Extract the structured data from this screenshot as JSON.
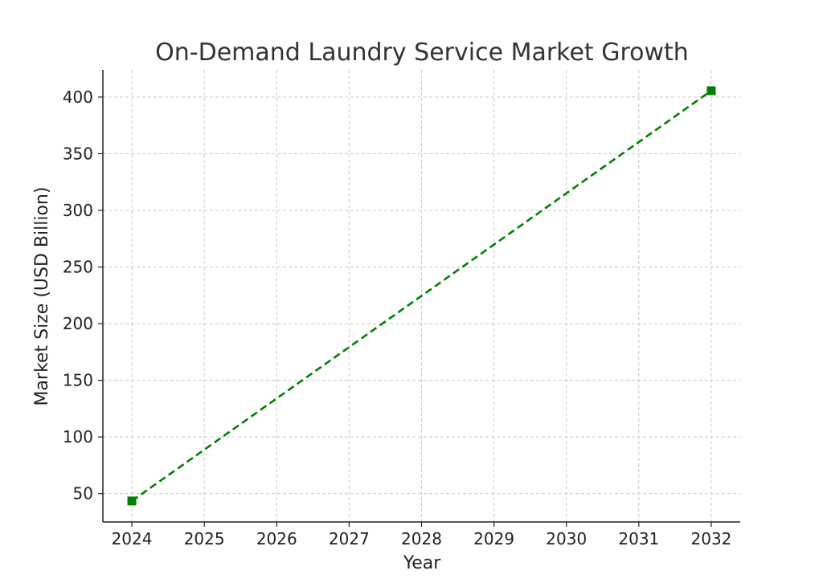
{
  "chart_data": {
    "type": "line",
    "title": "On-Demand Laundry Service Market Growth",
    "xlabel": "Year",
    "ylabel": "Market Size (USD Billion)",
    "x": [
      2024,
      2032
    ],
    "series": [
      {
        "values": [
          43.5,
          405.6
        ],
        "color": "#008000",
        "line_style": "dashed",
        "marker": "square"
      }
    ],
    "x_ticks": [
      2024,
      2025,
      2026,
      2027,
      2028,
      2029,
      2030,
      2031,
      2032
    ],
    "y_ticks": [
      50,
      100,
      150,
      200,
      250,
      300,
      350,
      400
    ],
    "xlim": [
      2023.6,
      2032.4
    ],
    "ylim": [
      25,
      424
    ],
    "grid": true,
    "spines": [
      "left",
      "bottom"
    ]
  }
}
